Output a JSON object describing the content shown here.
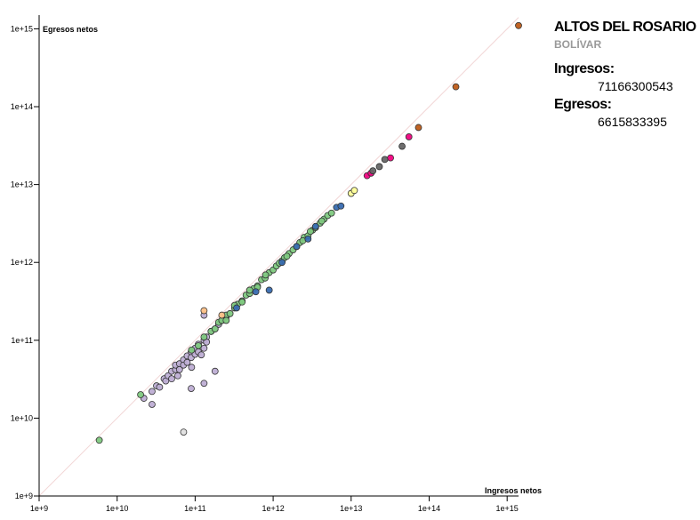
{
  "chart_data": {
    "type": "scatter",
    "log_scale": true,
    "identity_line": true,
    "xlabel": "Ingresos netos",
    "ylabel": "Egresos netos",
    "xlim": [
      1000000000.0,
      1400000000000000.0
    ],
    "ylim": [
      1000000000.0,
      1500000000000000.0
    ],
    "xticks": [
      {
        "value": 1000000000.0,
        "label": "1e+9"
      },
      {
        "value": 10000000000.0,
        "label": "1e+10"
      },
      {
        "value": 100000000000.0,
        "label": "1e+11"
      },
      {
        "value": 1000000000000.0,
        "label": "1e+12"
      },
      {
        "value": 10000000000000.0,
        "label": "1e+13"
      },
      {
        "value": 100000000000000.0,
        "label": "1e+14"
      },
      {
        "value": 1000000000000000.0,
        "label": "1e+15"
      }
    ],
    "yticks": [
      {
        "value": 1000000000.0,
        "label": "1e+9"
      },
      {
        "value": 10000000000.0,
        "label": "1e+10"
      },
      {
        "value": 100000000000.0,
        "label": "1e+11"
      },
      {
        "value": 1000000000000.0,
        "label": "1e+12"
      },
      {
        "value": 10000000000000.0,
        "label": "1e+13"
      },
      {
        "value": 100000000000000.0,
        "label": "1e+14"
      },
      {
        "value": 1000000000000000.0,
        "label": "1e+15"
      }
    ],
    "series": [
      {
        "color": "#beaed4",
        "x": [
          28000000000.0,
          32000000000.0,
          35000000000.0,
          40000000000.0,
          42000000000.0,
          45000000000.0,
          50000000000.0,
          50000000000.0,
          56000000000.0,
          56000000000.0,
          63000000000.0,
          63000000000.0,
          71000000000.0,
          71000000000.0,
          79000000000.0,
          79000000000.0,
          89000000000.0,
          89000000000.0,
          100000000000.0,
          100000000000.0,
          110000000000.0,
          110000000000.0,
          130000000000.0,
          130000000000.0,
          140000000000.0,
          140000000000.0,
          160000000000.0,
          180000000000.0,
          200000000000.0,
          220000000000.0,
          250000000000.0,
          28000000000.0,
          130000000000.0,
          89000000000.0,
          130000000000.0,
          180000000000.0,
          22000000000.0,
          60000000000.0,
          90000000000.0,
          120000000000.0
        ],
        "y": [
          22000000000.0,
          26000000000.0,
          25000000000.0,
          32000000000.0,
          30000000000.0,
          35000000000.0,
          40000000000.0,
          32000000000.0,
          42000000000.0,
          48000000000.0,
          50000000000.0,
          42000000000.0,
          56000000000.0,
          48000000000.0,
          63000000000.0,
          52000000000.0,
          71000000000.0,
          60000000000.0,
          79000000000.0,
          66000000000.0,
          89000000000.0,
          71000000000.0,
          100000000000.0,
          79000000000.0,
          110000000000.0,
          95000000000.0,
          130000000000.0,
          140000000000.0,
          160000000000.0,
          180000000000.0,
          200000000000.0,
          15000000000.0,
          210000000000.0,
          24000000000.0,
          28000000000.0,
          40000000000.0,
          18000000000.0,
          35000000000.0,
          45000000000.0,
          65000000000.0
        ]
      },
      {
        "color": "#7fc97f",
        "x": [
          90000000000.0,
          110000000000.0,
          130000000000.0,
          160000000000.0,
          180000000000.0,
          200000000000.0,
          220000000000.0,
          250000000000.0,
          280000000000.0,
          320000000000.0,
          350000000000.0,
          400000000000.0,
          450000000000.0,
          500000000000.0,
          560000000000.0,
          630000000000.0,
          710000000000.0,
          790000000000.0,
          890000000000.0,
          1000000000000.0,
          1100000000000.0,
          1300000000000.0,
          1400000000000.0,
          1600000000000.0,
          1800000000000.0,
          2000000000000.0,
          2200000000000.0,
          2500000000000.0,
          2800000000000.0,
          3200000000000.0,
          3500000000000.0,
          4000000000000.0,
          4500000000000.0,
          5000000000000.0,
          5600000000000.0,
          250000000000.0,
          320000000000.0,
          400000000000.0,
          500000000000.0,
          630000000000.0,
          800000000000.0,
          1200000000000.0,
          1500000000000.0,
          2400000000000.0,
          3000000000000.0,
          4200000000000.0,
          20000000000.0,
          5900000000.0
        ],
        "y": [
          75000000000.0,
          85000000000.0,
          110000000000.0,
          130000000000.0,
          140000000000.0,
          170000000000.0,
          180000000000.0,
          210000000000.0,
          220000000000.0,
          260000000000.0,
          290000000000.0,
          320000000000.0,
          380000000000.0,
          400000000000.0,
          460000000000.0,
          500000000000.0,
          600000000000.0,
          630000000000.0,
          740000000000.0,
          800000000000.0,
          900000000000.0,
          1050000000000.0,
          1150000000000.0,
          1300000000000.0,
          1450000000000.0,
          1600000000000.0,
          1800000000000.0,
          2100000000000.0,
          2200000000000.0,
          2600000000000.0,
          2800000000000.0,
          3200000000000.0,
          3600000000000.0,
          4000000000000.0,
          4300000000000.0,
          180000000000.0,
          280000000000.0,
          310000000000.0,
          440000000000.0,
          480000000000.0,
          690000000000.0,
          980000000000.0,
          1200000000000.0,
          1900000000000.0,
          2500000000000.0,
          3400000000000.0,
          20000000000.0,
          5200000000.0
        ]
      },
      {
        "color": "#386cb0",
        "x": [
          340000000000.0,
          600000000000.0,
          1300000000000.0,
          2000000000000.0,
          2800000000000.0,
          3500000000000.0,
          6500000000000.0,
          7400000000000.0,
          890000000000.0
        ],
        "y": [
          260000000000.0,
          420000000000.0,
          1000000000000.0,
          1600000000000.0,
          2000000000000.0,
          2900000000000.0,
          5100000000000.0,
          5300000000000.0,
          440000000000.0
        ]
      },
      {
        "color": "#fdc086",
        "x": [
          130000000000.0,
          220000000000.0
        ],
        "y": [
          240000000000.0,
          210000000000.0
        ]
      },
      {
        "color": "#ffff99",
        "x": [
          10000000000000.0,
          11000000000000.0
        ],
        "y": [
          7700000000000.0,
          8400000000000.0
        ]
      },
      {
        "color": "#f0027f",
        "x": [
          16000000000000.0,
          18000000000000.0,
          32000000000000.0,
          55000000000000.0
        ],
        "y": [
          13000000000000.0,
          14000000000000.0,
          22000000000000.0,
          41000000000000.0
        ]
      },
      {
        "color": "#666666",
        "x": [
          19000000000000.0,
          23000000000000.0,
          27000000000000.0,
          45000000000000.0
        ],
        "y": [
          15000000000000.0,
          17000000000000.0,
          21000000000000.0,
          31000000000000.0
        ]
      },
      {
        "color": "#bf5b17",
        "x": [
          73000000000000.0,
          220000000000000.0,
          1400000000000000.0
        ],
        "y": [
          54000000000000.0,
          180000000000000.0,
          1100000000000000.0
        ]
      },
      {
        "color": "#e0e0e0",
        "x": [
          71166300543
        ],
        "y": [
          6615833395
        ]
      }
    ]
  },
  "panel": {
    "title": "ALTOS DEL ROSARIO",
    "subtitle": "BOLÍVAR",
    "income_label": "Ingresos:",
    "income_value": "71166300543",
    "expense_label": "Egresos:",
    "expense_value": "6615833395"
  }
}
